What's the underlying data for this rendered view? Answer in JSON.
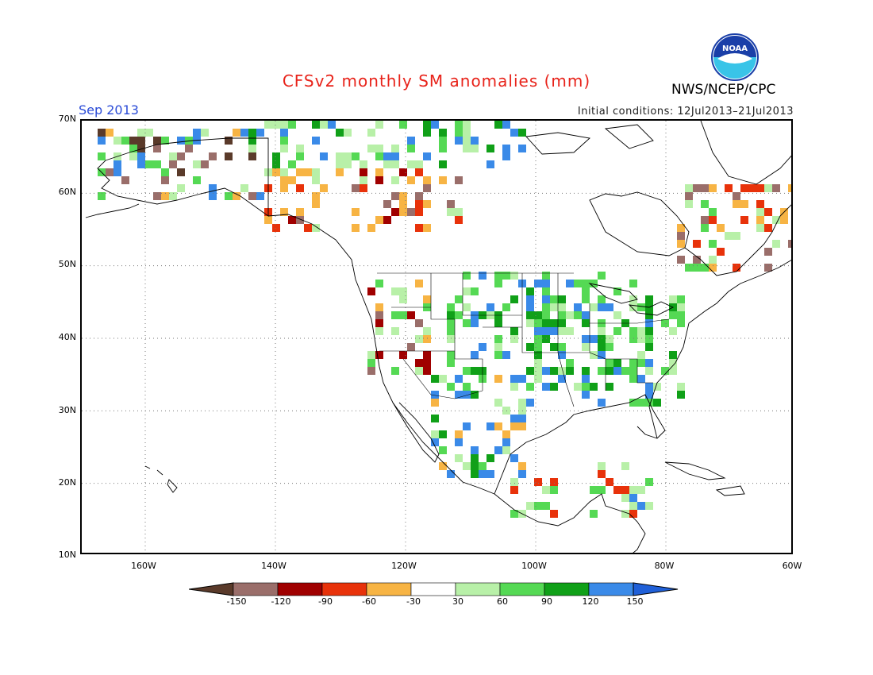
{
  "header": {
    "title": "CFSv2 monthly SM anomalies (mm)",
    "org": "NWS/NCEP/CPC",
    "month": "Sep 2013",
    "initial_conditions": "Initial conditions: 12Jul2013–21Jul2013",
    "logo_text": "NOAA"
  },
  "map": {
    "lat_labels": [
      "70N",
      "60N",
      "50N",
      "40N",
      "30N",
      "20N",
      "10N"
    ],
    "lon_labels": [
      "160W",
      "140W",
      "120W",
      "100W",
      "80W",
      "60W"
    ],
    "lon_range": [
      -172,
      -60
    ],
    "lat_range": [
      10,
      70
    ]
  },
  "colorbar": {
    "labels": [
      "-150",
      "-120",
      "-90",
      "-60",
      "-30",
      "30",
      "60",
      "90",
      "120",
      "150"
    ],
    "colors": [
      "#5a3a2a",
      "#9a6e6a",
      "#a00000",
      "#e8320a",
      "#f7b444",
      "#ffffff",
      "#b8f0a8",
      "#55d954",
      "#10a018",
      "#3a8ae8",
      "#2060d8"
    ]
  }
}
